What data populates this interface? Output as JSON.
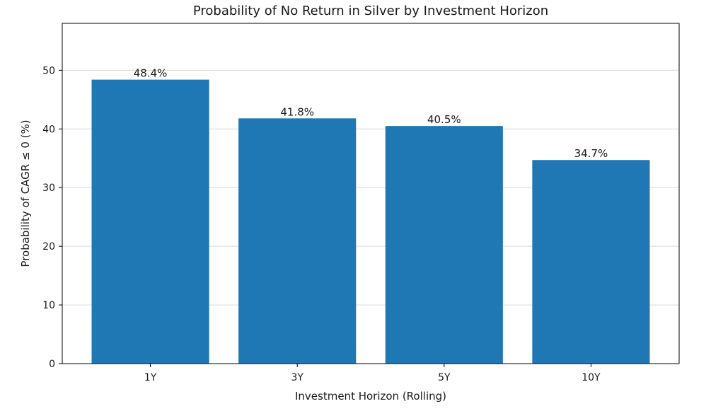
{
  "chart_data": {
    "type": "bar",
    "title": "Probability of No Return in Silver by Investment Horizon",
    "xlabel": "Investment Horizon (Rolling)",
    "ylabel": "Probability of CAGR ≤ 0 (%)",
    "categories": [
      "1Y",
      "3Y",
      "5Y",
      "10Y"
    ],
    "values": [
      48.4,
      41.8,
      40.5,
      34.7
    ],
    "value_labels": [
      "48.4%",
      "41.8%",
      "40.5%",
      "34.7%"
    ],
    "ylim": [
      0,
      58
    ],
    "yticks": [
      0,
      10,
      20,
      30,
      40,
      50
    ],
    "bar_color": "#1f77b4",
    "grid": "y-axis, light gray"
  }
}
